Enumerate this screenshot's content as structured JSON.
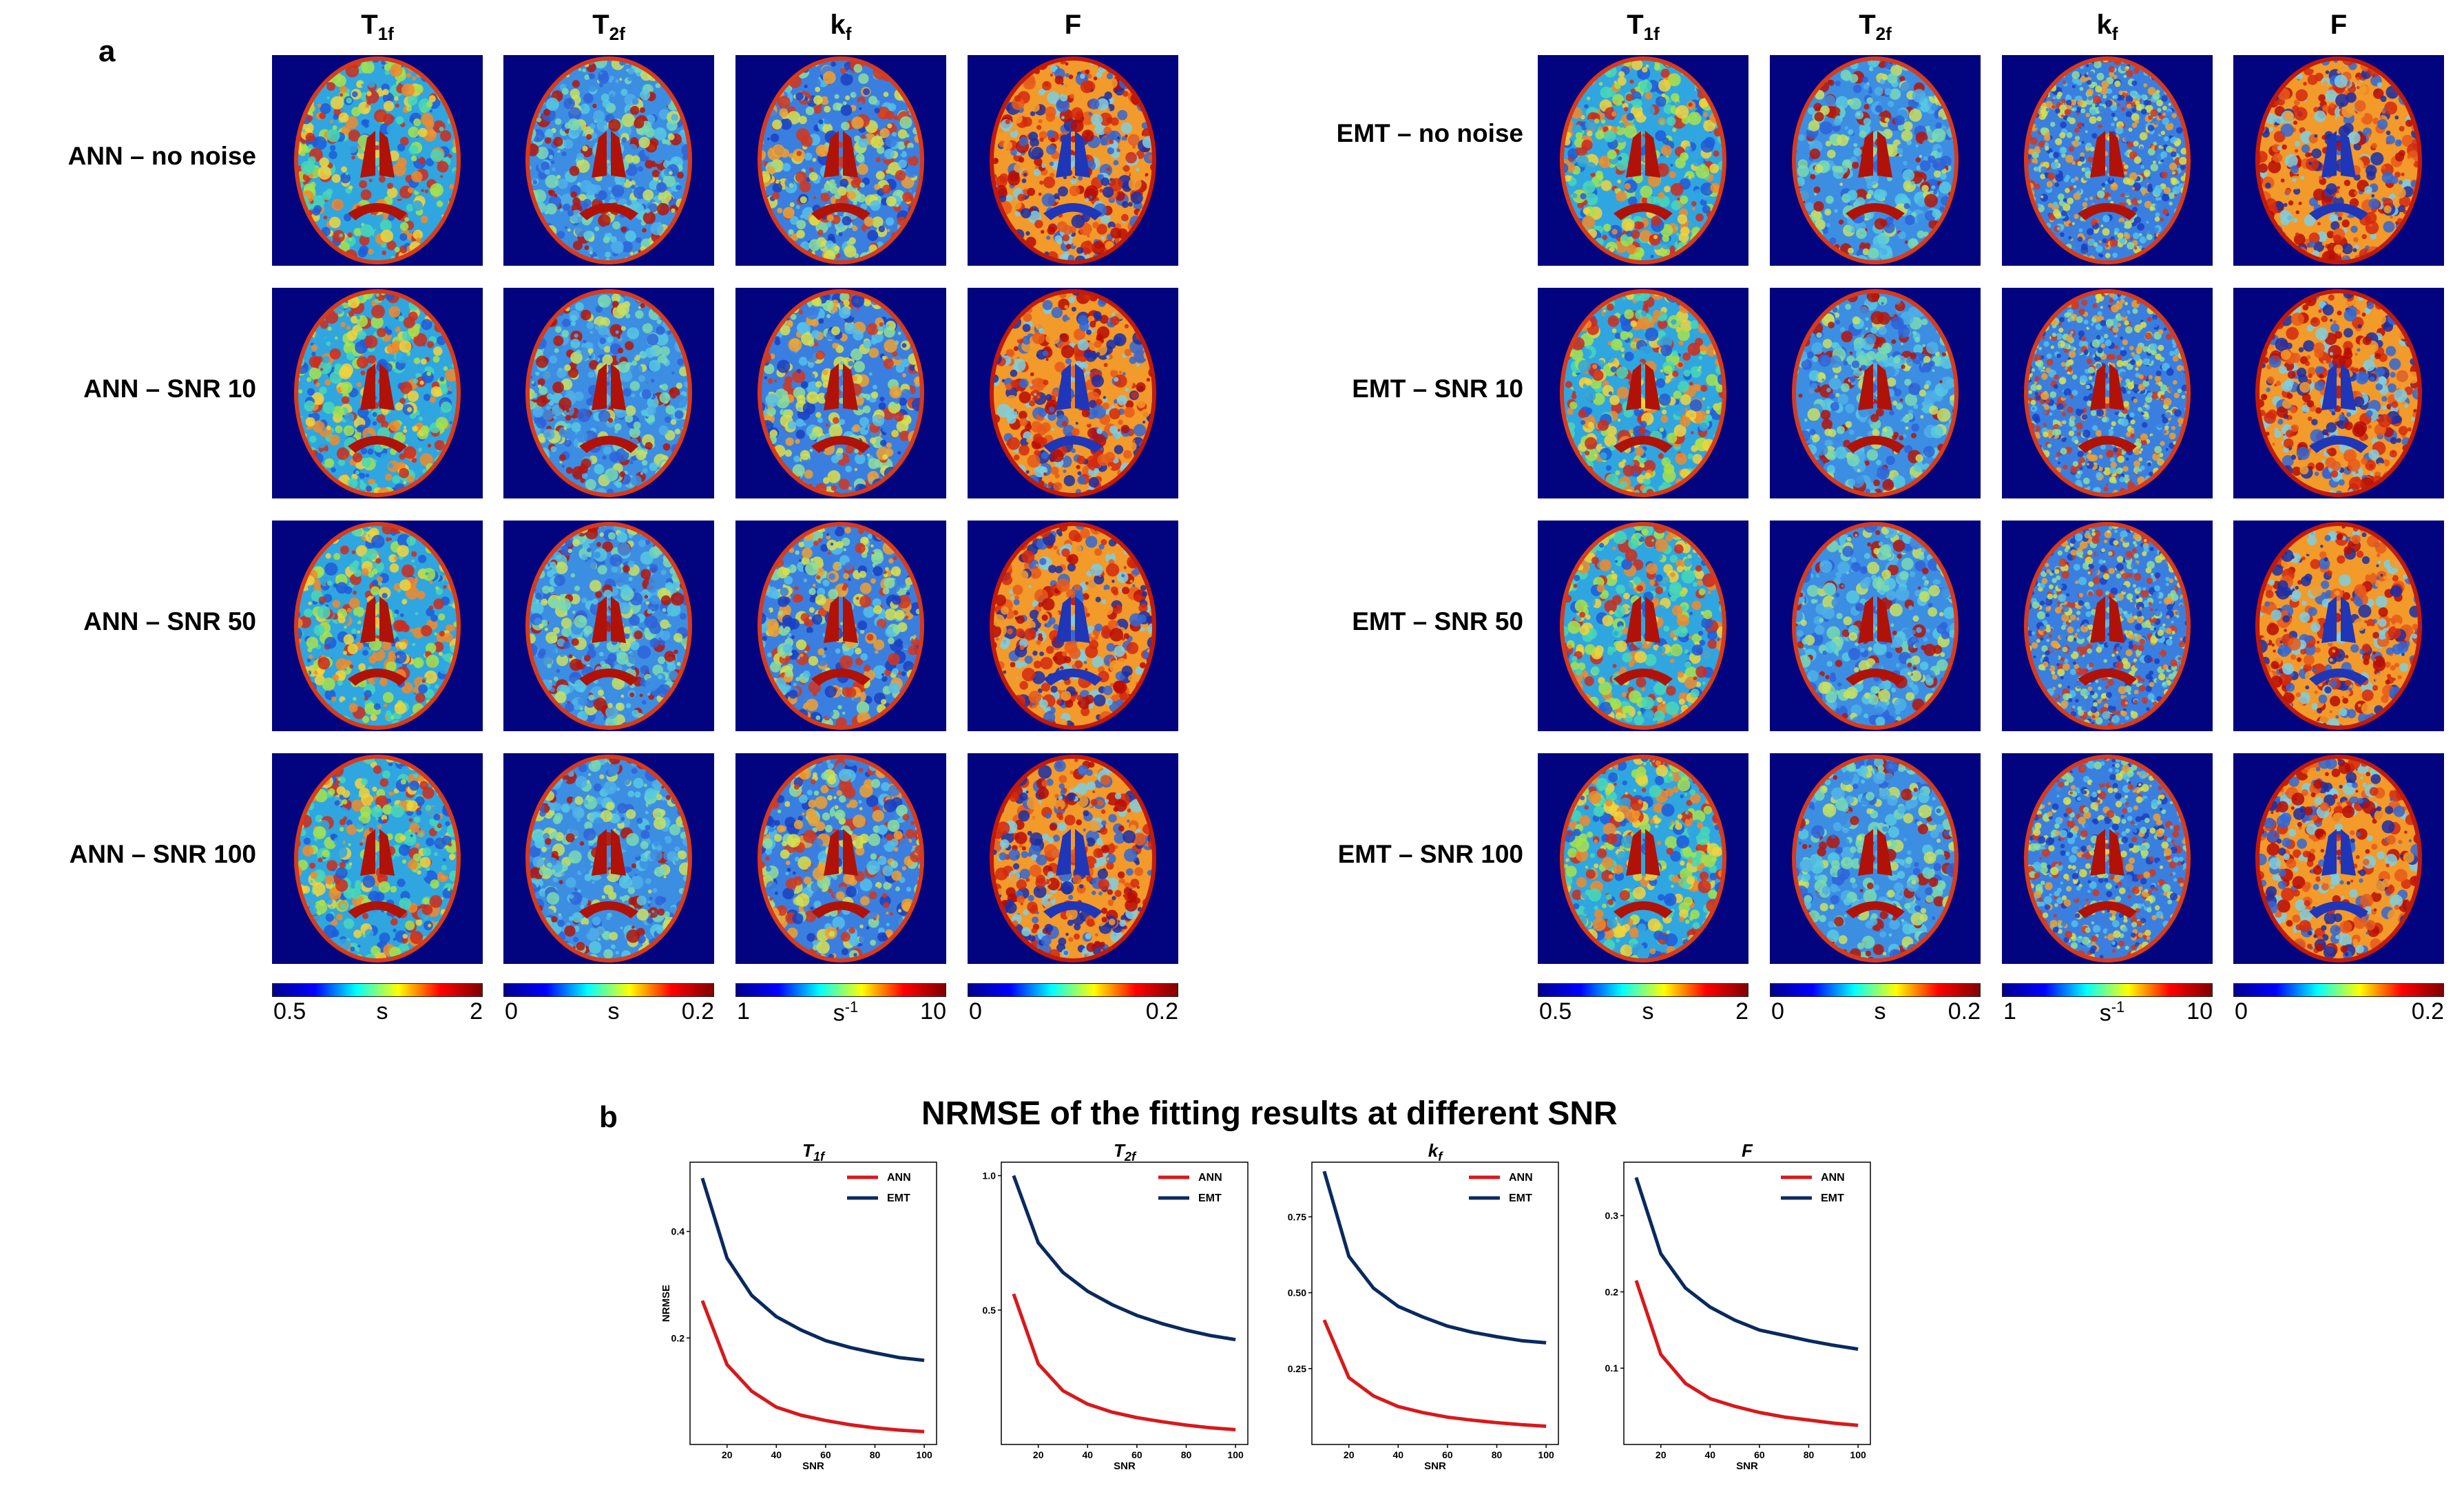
{
  "panel_a": {
    "letter": "a",
    "columns": [
      {
        "base": "T",
        "sub": "1f"
      },
      {
        "base": "T",
        "sub": "2f"
      },
      {
        "base": "k",
        "sub": "f"
      },
      {
        "base": "F",
        "sub": ""
      }
    ],
    "left_rows": [
      "ANN – no noise",
      "ANN – SNR 10",
      "ANN – SNR 50",
      "ANN – SNR 100"
    ],
    "right_rows": [
      "EMT – no noise",
      "EMT – SNR 10",
      "EMT – SNR 50",
      "EMT – SNR 100"
    ],
    "colorbars": [
      {
        "min": "0.5",
        "unit": "s",
        "unit_sup": "",
        "max": "2",
        "type": "jet"
      },
      {
        "min": "0",
        "unit": "s",
        "unit_sup": "",
        "max": "0.2",
        "type": "jet"
      },
      {
        "min": "1",
        "unit": "s",
        "unit_sup": "-1",
        "max": "10",
        "type": "jet"
      },
      {
        "min": "0",
        "unit": "",
        "unit_sup": "",
        "max": "0.2",
        "type": "jet"
      }
    ]
  },
  "panel_b": {
    "letter": "b",
    "title": "NRMSE of the fitting results at different SNR",
    "colors": {
      "ANN": "#d7191c",
      "EMT": "#0a2a5e"
    }
  },
  "chart_data": [
    {
      "type": "line",
      "title": "T1f",
      "title_base": "T",
      "title_sub": "1f",
      "xlabel": "SNR",
      "ylabel": "NRMSE",
      "x": [
        10,
        20,
        30,
        40,
        50,
        60,
        70,
        80,
        90,
        100
      ],
      "xticks": [
        20,
        40,
        60,
        80,
        100
      ],
      "xlim": [
        5,
        105
      ],
      "yticks": [
        0.2,
        0.4
      ],
      "ytick_labels": [
        "0.2",
        "0.4"
      ],
      "ylim": [
        0.0,
        0.53
      ],
      "series": [
        {
          "name": "ANN",
          "values": [
            0.27,
            0.15,
            0.1,
            0.07,
            0.055,
            0.045,
            0.037,
            0.031,
            0.027,
            0.024
          ]
        },
        {
          "name": "EMT",
          "values": [
            0.5,
            0.35,
            0.28,
            0.24,
            0.215,
            0.195,
            0.182,
            0.172,
            0.163,
            0.158
          ]
        }
      ],
      "legend": "top-right"
    },
    {
      "type": "line",
      "title": "T2f",
      "title_base": "T",
      "title_sub": "2f",
      "xlabel": "SNR",
      "ylabel": "",
      "x": [
        10,
        20,
        30,
        40,
        50,
        60,
        70,
        80,
        90,
        100
      ],
      "xticks": [
        20,
        40,
        60,
        80,
        100
      ],
      "xlim": [
        5,
        105
      ],
      "yticks": [
        0.5,
        1.0
      ],
      "ytick_labels": [
        "0.5",
        "1.0"
      ],
      "ylim": [
        0.0,
        1.05
      ],
      "series": [
        {
          "name": "ANN",
          "values": [
            0.56,
            0.3,
            0.2,
            0.15,
            0.12,
            0.1,
            0.085,
            0.072,
            0.062,
            0.055
          ]
        },
        {
          "name": "EMT",
          "values": [
            1.0,
            0.75,
            0.64,
            0.57,
            0.52,
            0.48,
            0.45,
            0.425,
            0.405,
            0.39
          ]
        }
      ],
      "legend": "top-right"
    },
    {
      "type": "line",
      "title": "kf",
      "title_base": "k",
      "title_sub": "f",
      "xlabel": "SNR",
      "ylabel": "",
      "x": [
        10,
        20,
        30,
        40,
        50,
        60,
        70,
        80,
        90,
        100
      ],
      "xticks": [
        20,
        40,
        60,
        80,
        100
      ],
      "xlim": [
        5,
        105
      ],
      "yticks": [
        0.25,
        0.5,
        0.75
      ],
      "ytick_labels": [
        "0.25",
        "0.50",
        "0.75"
      ],
      "ylim": [
        0.0,
        0.93
      ],
      "series": [
        {
          "name": "ANN",
          "values": [
            0.41,
            0.22,
            0.16,
            0.125,
            0.105,
            0.09,
            0.08,
            0.072,
            0.065,
            0.06
          ]
        },
        {
          "name": "EMT",
          "values": [
            0.9,
            0.62,
            0.515,
            0.455,
            0.42,
            0.39,
            0.37,
            0.355,
            0.342,
            0.335
          ]
        }
      ],
      "legend": "top-right"
    },
    {
      "type": "line",
      "title": "F",
      "title_base": "F",
      "title_sub": "",
      "xlabel": "SNR",
      "ylabel": "",
      "x": [
        10,
        20,
        30,
        40,
        50,
        60,
        70,
        80,
        90,
        100
      ],
      "xticks": [
        20,
        40,
        60,
        80,
        100
      ],
      "xlim": [
        5,
        105
      ],
      "yticks": [
        0.1,
        0.2,
        0.3
      ],
      "ytick_labels": [
        "0.1",
        "0.2",
        "0.3"
      ],
      "ylim": [
        0.0,
        0.37
      ],
      "series": [
        {
          "name": "ANN",
          "values": [
            0.215,
            0.118,
            0.08,
            0.06,
            0.05,
            0.042,
            0.036,
            0.032,
            0.028,
            0.025
          ]
        },
        {
          "name": "EMT",
          "values": [
            0.35,
            0.25,
            0.205,
            0.18,
            0.163,
            0.15,
            0.143,
            0.136,
            0.13,
            0.125
          ]
        }
      ],
      "legend": "top-right"
    }
  ]
}
